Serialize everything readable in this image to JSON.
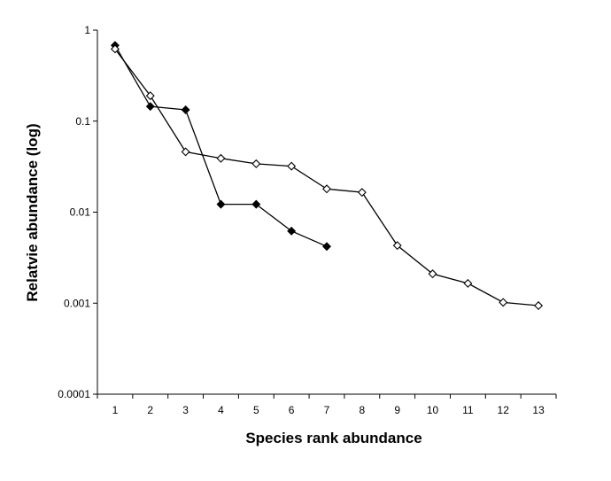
{
  "chart_data": {
    "type": "line",
    "xlabel": "Species rank abundance",
    "ylabel": "Relatvie abundance (log)",
    "yscale": "log",
    "ylim": [
      0.0001,
      1
    ],
    "xlim": [
      0.5,
      13.5
    ],
    "x_ticks": [
      "1",
      "2",
      "3",
      "4",
      "5",
      "6",
      "7",
      "8",
      "9",
      "10",
      "11",
      "12",
      "13"
    ],
    "y_ticks": [
      {
        "value": 0.0001,
        "label": "0.0001"
      },
      {
        "value": 0.001,
        "label": "0.001"
      },
      {
        "value": 0.01,
        "label": "0.01"
      },
      {
        "value": 0.1,
        "label": "0.1"
      },
      {
        "value": 1,
        "label": "1"
      }
    ],
    "grid": false,
    "legend": "none",
    "series": [
      {
        "marker": "filled-diamond",
        "color": "#000000",
        "x": [
          1,
          2,
          3,
          4,
          5,
          6,
          7
        ],
        "y": [
          0.68,
          0.145,
          0.133,
          0.0122,
          0.0122,
          0.0062,
          0.0042
        ]
      },
      {
        "marker": "open-diamond",
        "color": "#000000",
        "x": [
          1,
          2,
          3,
          4,
          5,
          6,
          7,
          8,
          9,
          10,
          11,
          12,
          13
        ],
        "y": [
          0.62,
          0.19,
          0.046,
          0.039,
          0.034,
          0.032,
          0.018,
          0.0165,
          0.0043,
          0.0021,
          0.00165,
          0.00102,
          0.00094
        ]
      }
    ]
  }
}
